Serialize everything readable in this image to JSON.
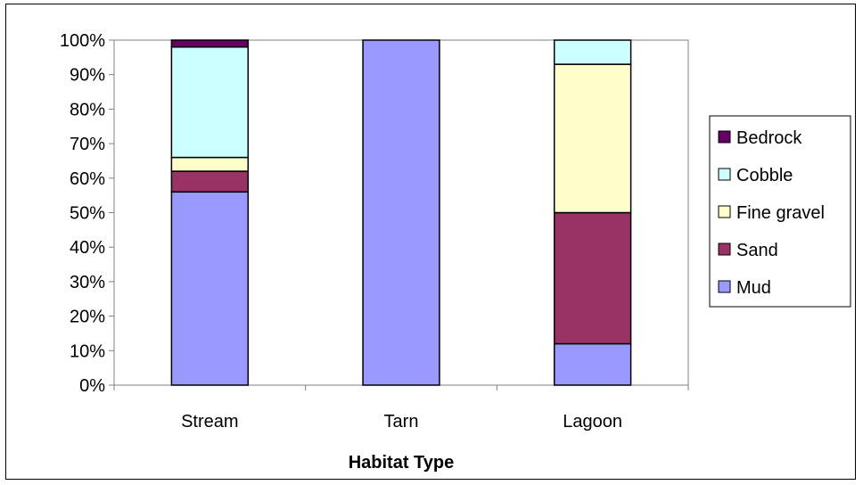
{
  "chart_data": {
    "type": "bar",
    "stacked": true,
    "percent_stacked": true,
    "categories": [
      "Stream",
      "Tarn",
      "Lagoon"
    ],
    "series": [
      {
        "name": "Mud",
        "values": [
          56,
          100,
          12
        ],
        "color": "#9999ff"
      },
      {
        "name": "Sand",
        "values": [
          6,
          0,
          38
        ],
        "color": "#993366"
      },
      {
        "name": "Fine gravel",
        "values": [
          4,
          0,
          43
        ],
        "color": "#ffffcc"
      },
      {
        "name": "Cobble",
        "values": [
          32,
          0,
          7
        ],
        "color": "#ccffff"
      },
      {
        "name": "Bedrock",
        "values": [
          2,
          0,
          0
        ],
        "color": "#660066"
      }
    ],
    "legend_order": [
      "Bedrock",
      "Cobble",
      "Fine gravel",
      "Sand",
      "Mud"
    ],
    "xlabel": "Habitat Type",
    "ylabel": "",
    "ylim": [
      0,
      100
    ],
    "yticks": [
      0,
      10,
      20,
      30,
      40,
      50,
      60,
      70,
      80,
      90,
      100
    ],
    "ytick_labels": [
      "0%",
      "10%",
      "20%",
      "30%",
      "40%",
      "50%",
      "60%",
      "70%",
      "80%",
      "90%",
      "100%"
    ],
    "grid": false,
    "legend_position": "right"
  }
}
